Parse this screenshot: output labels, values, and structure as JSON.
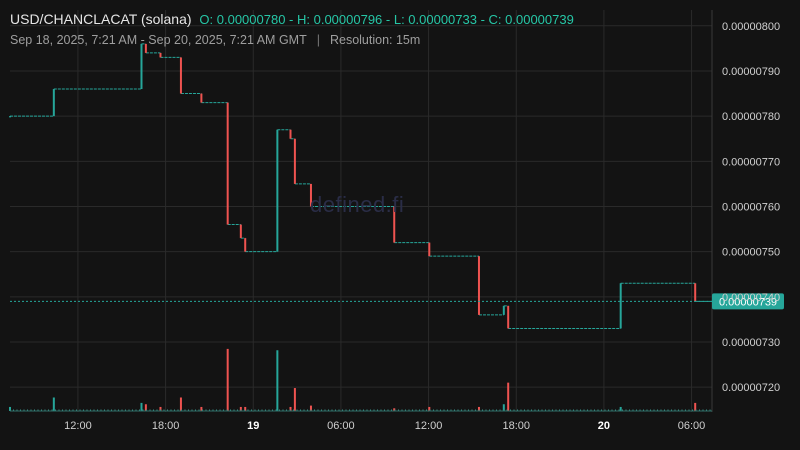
{
  "header": {
    "pair": "USD/CHANCLACAT (solana)",
    "ohlc": "O: 0.00000780 - H: 0.00000796 - L: 0.00000733 - C: 0.00000739",
    "range": "Sep 18, 2025, 7:21 AM - Sep 20, 2025, 7:21 AM GMT",
    "separator": "|",
    "resolution": "Resolution: 15m"
  },
  "watermark": "defined.fi",
  "colors": {
    "up": "#26a69a",
    "down": "#ef5350",
    "background": "#131313",
    "grid": "#2a2a2a",
    "last_price_line": "#26a69a"
  },
  "chart_data": {
    "type": "candlestick",
    "ylim": [
      7.145e-06,
      8.035e-06
    ],
    "y_ticks": [
      "0.00000720",
      "0.00000730",
      "0.00000740",
      "0.00000750",
      "0.00000760",
      "0.00000770",
      "0.00000780",
      "0.00000790",
      "0.00000800"
    ],
    "x_ticks": [
      {
        "label": "12:00",
        "t": 4.65,
        "bold": false
      },
      {
        "label": "18:00",
        "t": 10.65,
        "bold": false
      },
      {
        "label": "19",
        "t": 16.65,
        "bold": true
      },
      {
        "label": "06:00",
        "t": 22.65,
        "bold": false
      },
      {
        "label": "12:00",
        "t": 28.65,
        "bold": false
      },
      {
        "label": "18:00",
        "t": 34.65,
        "bold": false
      },
      {
        "label": "20",
        "t": 40.65,
        "bold": true
      },
      {
        "label": "06:00",
        "t": 46.65,
        "bold": false
      }
    ],
    "x_unit": "hours since Sep 18, 2025 7:21 AM GMT",
    "xlim": [
      0,
      48.05
    ],
    "last_price": "0.00000739",
    "candles": [
      {
        "t": 0.0,
        "o": 7.8e-06,
        "c": 7.8e-06,
        "v": 0.3
      },
      {
        "t": 3.0,
        "o": 7.8e-06,
        "c": 7.86e-06,
        "v": 1.0
      },
      {
        "t": 9.0,
        "o": 7.86e-06,
        "c": 7.96e-06,
        "v": 0.6
      },
      {
        "t": 9.3,
        "o": 7.96e-06,
        "c": 7.94e-06,
        "v": 0.5
      },
      {
        "t": 10.3,
        "o": 7.94e-06,
        "c": 7.93e-06,
        "v": 0.3
      },
      {
        "t": 11.7,
        "o": 7.93e-06,
        "c": 7.85e-06,
        "v": 1.0
      },
      {
        "t": 13.1,
        "o": 7.85e-06,
        "c": 7.83e-06,
        "v": 0.3
      },
      {
        "t": 14.9,
        "o": 7.83e-06,
        "c": 7.56e-06,
        "v": 4.6
      },
      {
        "t": 15.8,
        "o": 7.56e-06,
        "c": 7.53e-06,
        "v": 0.3
      },
      {
        "t": 16.1,
        "o": 7.53e-06,
        "c": 7.5e-06,
        "v": 0.3
      },
      {
        "t": 18.3,
        "o": 7.5e-06,
        "c": 7.77e-06,
        "v": 4.5
      },
      {
        "t": 19.2,
        "o": 7.77e-06,
        "c": 7.75e-06,
        "v": 0.3
      },
      {
        "t": 19.5,
        "o": 7.75e-06,
        "c": 7.65e-06,
        "v": 1.7
      },
      {
        "t": 20.6,
        "o": 7.65e-06,
        "c": 7.6e-06,
        "v": 0.4
      },
      {
        "t": 26.3,
        "o": 7.6e-06,
        "c": 7.52e-06,
        "v": 0.2
      },
      {
        "t": 28.7,
        "o": 7.52e-06,
        "c": 7.49e-06,
        "v": 0.3
      },
      {
        "t": 32.1,
        "o": 7.49e-06,
        "c": 7.36e-06,
        "v": 0.3
      },
      {
        "t": 33.8,
        "o": 7.36e-06,
        "c": 7.38e-06,
        "v": 0.5
      },
      {
        "t": 34.1,
        "o": 7.38e-06,
        "c": 7.33e-06,
        "v": 2.1
      },
      {
        "t": 41.8,
        "o": 7.33e-06,
        "c": 7.43e-06,
        "v": 0.3
      },
      {
        "t": 46.9,
        "o": 7.43e-06,
        "c": 7.39e-06,
        "v": 0.6
      }
    ]
  }
}
